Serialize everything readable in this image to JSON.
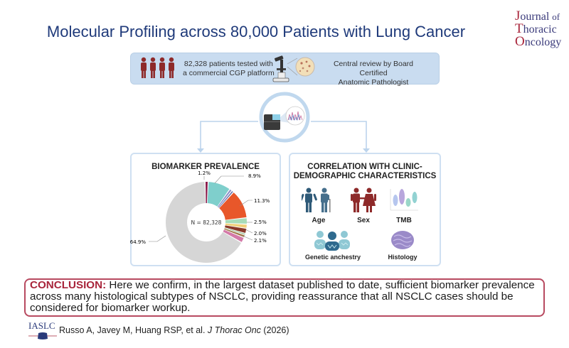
{
  "header": {
    "title": "Molecular Profiling across 80,000 Patients with Lung Cancer",
    "journal_logo": {
      "line1_cap": "J",
      "line1_rest": "ournal",
      "line1_of": "of",
      "line2_cap": "T",
      "line2_rest": "horacic",
      "line3_cap": "O",
      "line3_rest": "ncology"
    }
  },
  "top_box": {
    "patients_line1": "82,328 patients tested with",
    "patients_line2": "a commercial CGP platform",
    "review_line1": "Central review by Board Certified",
    "review_line2": "Anatomic Pathologist",
    "icons": [
      "people-icon",
      "microscope-icon",
      "tissue-icon"
    ]
  },
  "sequencer": {
    "icons": [
      "sequencer-icon",
      "chromatogram-icon"
    ]
  },
  "left_panel": {
    "title": "BIOMARKER PREVALENCE",
    "center_label": "N = 82,328"
  },
  "right_panel": {
    "title_line1": "CORRELATION WITH CLINIC-",
    "title_line2": "DEMOGRAPHIC CHARACTERISTICS",
    "items": [
      {
        "label": "Age",
        "icon": "age-icon"
      },
      {
        "label": "Sex",
        "icon": "sex-icon"
      },
      {
        "label": "TMB",
        "icon": "violin-plot-icon"
      },
      {
        "label": "Genetic anchestry",
        "icon": "genetic-ancestry-icon"
      },
      {
        "label": "Histology",
        "icon": "histology-icon"
      }
    ]
  },
  "conclusion": {
    "heading": "CONCLUSION:",
    "line1": " Here we confirm, in the largest dataset published to date, sufficient biomarker prevalence",
    "line2": "across many histological subtypes of NSCLC, providing reassurance that all NSCLC cases should be",
    "line3": "considered for biomarker workup."
  },
  "footer": {
    "society": "IASLC",
    "citation_authors": "Russo A, Javey M, Huang RSP, et al. ",
    "citation_journal": "J Thorac Onc",
    "citation_year": " (2026)"
  },
  "colors": {
    "title": "#1f3a7a",
    "accent_red": "#a8243a",
    "panel_border": "#cfe0f2",
    "top_box_bg": "#c9dcf0",
    "conclusion_border": "#b84a60"
  },
  "chart_data": {
    "type": "pie",
    "subtype": "donut",
    "title": "BIOMARKER PREVALENCE",
    "center_label": "N = 82,328",
    "total_n": 82328,
    "slices": [
      {
        "label": "1.2%",
        "value": 1.2,
        "color": "#8b1a4a"
      },
      {
        "label": "8.9%",
        "value": 8.9,
        "color": "#7fcfcc"
      },
      {
        "label": "",
        "value": 1.0,
        "color": "#8c8fc8"
      },
      {
        "label": "",
        "value": 0.8,
        "color": "#5a6aa8"
      },
      {
        "label": "11.3%",
        "value": 11.3,
        "color": "#e8572a"
      },
      {
        "label": "2.5%",
        "value": 2.5,
        "color": "#a8dcb8"
      },
      {
        "label": "",
        "value": 1.6,
        "color": "#f0cf78"
      },
      {
        "label": "2.0%",
        "value": 2.0,
        "color": "#8a3a2a"
      },
      {
        "label": "",
        "value": 0.6,
        "color": "#6aa86a"
      },
      {
        "label": "",
        "value": 1.1,
        "color": "#a07848"
      },
      {
        "label": "2.1%",
        "value": 2.1,
        "color": "#d47aa8"
      },
      {
        "label": "64.9%",
        "value": 64.9,
        "color": "#d6d6d6"
      }
    ],
    "visible_labels": [
      "1.2%",
      "8.9%",
      "11.3%",
      "2.5%",
      "2.0%",
      "2.1%",
      "64.9%"
    ]
  }
}
